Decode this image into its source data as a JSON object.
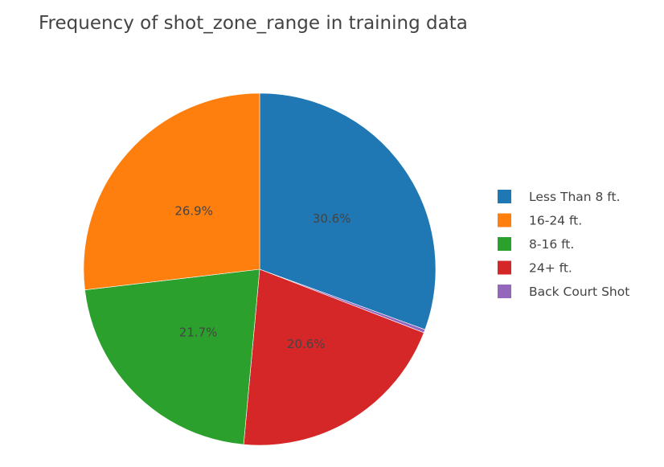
{
  "chart_data": {
    "type": "pie",
    "title": "Frequency of shot_zone_range in training data",
    "categories": [
      "Less Than 8 ft.",
      "16-24 ft.",
      "8-16 ft.",
      "24+ ft.",
      "Back Court Shot"
    ],
    "values": [
      30.6,
      26.9,
      21.7,
      20.6,
      0.3
    ],
    "value_labels": [
      "30.6%",
      "26.9%",
      "21.7%",
      "20.6%",
      ""
    ],
    "colors": [
      "#1f77b4",
      "#ff7f0e",
      "#2ca02c",
      "#d62728",
      "#9467bd"
    ],
    "legend_position": "right",
    "sort_order": [
      "Less Than 8 ft.",
      "24+ ft.",
      "8-16 ft.",
      "16-24 ft.",
      "Back Court Shot"
    ]
  }
}
